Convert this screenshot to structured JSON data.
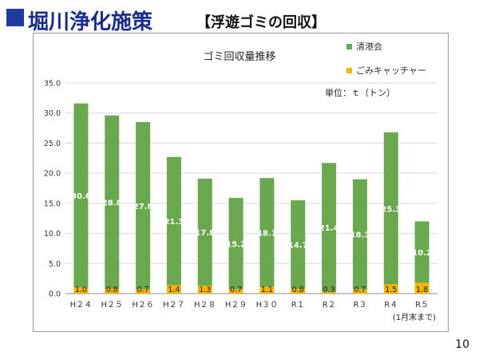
{
  "slide": {
    "title": "堀川浄化施策",
    "subtitle": "【浮遊ゴミの回収】",
    "page_number": "10"
  },
  "chart_data": {
    "type": "bar",
    "stacked": true,
    "title": "ゴミ回収量推移",
    "unit_note": "単位：ｔ（トン）",
    "x_note": "(1月末まで)",
    "categories": [
      "H２４",
      "H２５",
      "H２６",
      "H２７",
      "H２８",
      "H２９",
      "H３０",
      "R１",
      "R２",
      "R３",
      "R４",
      "R５"
    ],
    "series": [
      {
        "name": "ごみキャッチャー",
        "color": "#f4b400",
        "values": [
          1.0,
          0.8,
          0.7,
          1.4,
          1.3,
          0.7,
          1.1,
          0.8,
          0.3,
          0.7,
          1.5,
          1.8
        ],
        "labels": [
          "1.0",
          "0.8",
          "0.7",
          "1.4",
          "1.3",
          "0.7",
          "1.1",
          "0.8",
          "0.3",
          "0.7",
          "1.5",
          "1.8"
        ]
      },
      {
        "name": "清港会",
        "color": "#6aa84f",
        "values": [
          30.6,
          28.8,
          27.8,
          21.3,
          17.8,
          15.2,
          18.1,
          14.7,
          21.4,
          18.3,
          25.3,
          10.2
        ],
        "labels": [
          "30.6",
          "28.8",
          "27.8",
          "21.3",
          "17.8",
          "15.2",
          "18.1",
          "14.7",
          "21.4",
          "18.3",
          "25.3",
          "10.2"
        ]
      }
    ],
    "legend": [
      "清港会",
      "ごみキャッチャー"
    ],
    "legend_position": "top-right",
    "yticks": [
      "0.0",
      "5.0",
      "10.0",
      "15.0",
      "20.0",
      "25.0",
      "30.0",
      "35.0"
    ],
    "ylim": [
      0,
      35
    ],
    "grid": true
  }
}
